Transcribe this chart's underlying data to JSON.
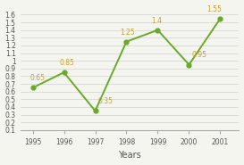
{
  "years": [
    1995,
    1996,
    1997,
    1998,
    1999,
    2000,
    2001
  ],
  "values": [
    0.65,
    0.85,
    0.35,
    1.25,
    1.4,
    0.95,
    1.55
  ],
  "labels": [
    "0.65",
    "0.85",
    "0.35",
    "1.25",
    "1.4",
    "0.95",
    "1.55"
  ],
  "label_offsets_x": [
    -0.1,
    -0.15,
    0.08,
    -0.2,
    -0.2,
    0.08,
    -0.45
  ],
  "label_offsets_y": [
    0.07,
    0.07,
    0.07,
    0.07,
    0.07,
    0.07,
    0.07
  ],
  "line_color": "#6aaa2a",
  "marker_color": "#6aaa2a",
  "xlabel": "Years",
  "ylim": [
    0.1,
    1.6
  ],
  "yticks": [
    0.1,
    0.2,
    0.3,
    0.4,
    0.5,
    0.6,
    0.7,
    0.8,
    0.9,
    1.0,
    1.1,
    1.2,
    1.3,
    1.4,
    1.5,
    1.6
  ],
  "background_color": "#f5f5f0",
  "grid_color": "#d8d8d8",
  "label_color": "#c8a030",
  "label_fontsize": 5.5,
  "tick_fontsize": 5.5,
  "xlabel_fontsize": 7,
  "marker_size": 3.5,
  "line_width": 1.4
}
